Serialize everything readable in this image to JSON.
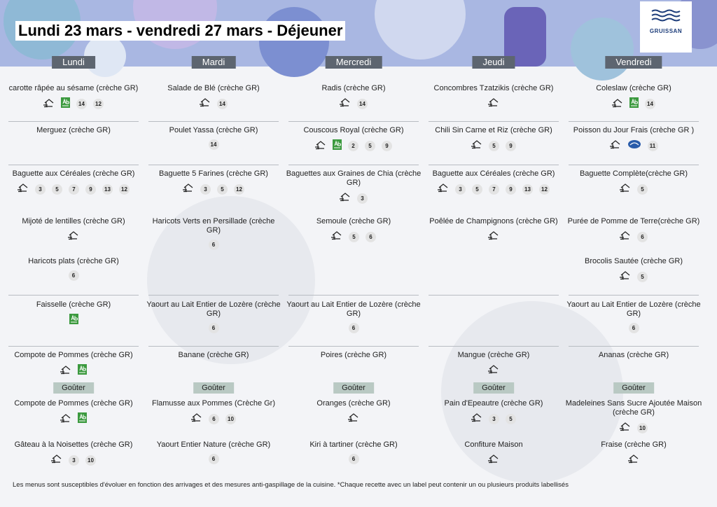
{
  "title": "Lundi 23 mars - vendredi 27 mars  - Déjeuner",
  "logo": "GRUISSAN",
  "days": [
    {
      "name": "Lundi",
      "lunch": [
        {
          "name": "carotte râpée au sésame (crèche GR)",
          "house": true,
          "bio": true,
          "allergens": [
            14,
            12
          ]
        },
        {
          "name": "Merguez (crèche GR)"
        },
        {
          "name": "Baguette aux Céréales (crèche GR)",
          "house": true,
          "allergens": [
            3,
            5,
            7,
            9,
            13,
            12
          ]
        },
        {
          "name": "Mijoté de lentilles   (crèche GR)",
          "house": true
        },
        {
          "name": "Haricots plats (crèche GR)",
          "allergens": [
            6
          ]
        },
        {
          "name": "Faisselle (crèche GR)",
          "bio": true
        },
        {
          "name": "Compote de Pommes (crèche GR)",
          "house": true,
          "bio": true
        }
      ],
      "snack_label": "Goûter",
      "snack": [
        {
          "name": "Compote de Pommes (crèche GR)",
          "house": true,
          "bio": true
        },
        {
          "name": "Gâteau à la Noisettes (crèche GR)",
          "house": true,
          "allergens": [
            3,
            10
          ]
        }
      ]
    },
    {
      "name": "Mardi",
      "lunch": [
        {
          "name": "Salade de Blé (crèche GR)",
          "house": true,
          "allergens": [
            14
          ]
        },
        {
          "name": "Poulet Yassa (crèche GR)",
          "allergens": [
            14
          ]
        },
        {
          "name": "Baguette 5 Farines (crèche GR)",
          "house": true,
          "allergens": [
            3,
            5,
            12
          ]
        },
        {
          "name": "Haricots Verts en Persillade (crèche GR)",
          "allergens": [
            6
          ]
        },
        null,
        {
          "name": "Yaourt au Lait Entier de Lozère (crèche GR)",
          "allergens": [
            6
          ]
        },
        {
          "name": "Banane (crèche GR)"
        }
      ],
      "snack_label": "Goûter",
      "snack": [
        {
          "name": "Flamusse aux Pommes (Crèche Gr)",
          "house": true,
          "allergens": [
            6,
            10
          ]
        },
        {
          "name": "Yaourt Entier Nature (crèche GR)",
          "allergens": [
            6
          ]
        }
      ]
    },
    {
      "name": "Mercredi",
      "lunch": [
        {
          "name": "Radis (crèche GR)",
          "house": true,
          "allergens": [
            14
          ]
        },
        {
          "name": "Couscous Royal (crèche GR)",
          "house": true,
          "bio": true,
          "allergens": [
            2,
            5,
            9
          ]
        },
        {
          "name": "Baguettes aux Graines de Chia (crèche GR)",
          "house": true,
          "allergens": [
            3
          ]
        },
        {
          "name": "Semoule (crèche GR)",
          "house": true,
          "allergens": [
            5,
            6
          ]
        },
        null,
        {
          "name": "Yaourt au Lait Entier de Lozère (crèche GR)",
          "allergens": [
            6
          ]
        },
        {
          "name": "Poires (crèche GR)"
        }
      ],
      "snack_label": "Goûter",
      "snack": [
        {
          "name": "Oranges (crèche GR)",
          "house": true
        },
        {
          "name": "Kiri à tartiner (crèche GR)",
          "allergens": [
            6
          ]
        }
      ]
    },
    {
      "name": "Jeudi",
      "lunch": [
        {
          "name": "Concombres Tzatzikis (crèche GR)",
          "house": true
        },
        {
          "name": "Chili Sin Carne et Riz (crèche GR)",
          "house": true,
          "allergens": [
            5,
            9
          ]
        },
        {
          "name": "Baguette aux Céréales (crèche GR)",
          "house": true,
          "allergens": [
            3,
            5,
            7,
            9,
            13,
            12
          ]
        },
        {
          "name": "Poêlée de Champignons (crèche GR)",
          "house": true
        },
        null,
        null,
        {
          "name": "Mangue  (crèche GR)",
          "house": true
        }
      ],
      "snack_label": "Goûter",
      "snack": [
        {
          "name": "Pain d'Epeautre (crèche GR)",
          "house": true,
          "allergens": [
            3,
            5
          ]
        },
        {
          "name": "Confiture Maison",
          "house": true
        }
      ]
    },
    {
      "name": "Vendredi",
      "lunch": [
        {
          "name": "Coleslaw (crèche GR)",
          "house": true,
          "bio": true,
          "allergens": [
            14
          ]
        },
        {
          "name": "Poisson du Jour Frais (crèche GR )",
          "house": true,
          "msc": true,
          "allergens": [
            11
          ]
        },
        {
          "name": "Baguette Complète(crèche GR)",
          "house": true,
          "allergens": [
            5
          ]
        },
        {
          "name": "Purée de Pomme de Terre(crèche GR)",
          "house": true,
          "allergens": [
            6
          ]
        },
        {
          "name": "Brocolis Sautée (crèche GR)",
          "house": true,
          "allergens": [
            5
          ]
        },
        {
          "name": "Yaourt au Lait Entier de Lozère (crèche GR)",
          "allergens": [
            6
          ]
        },
        {
          "name": "Ananas (crèche GR)"
        }
      ],
      "snack_label": "Goûter",
      "snack": [
        {
          "name": "Madeleines Sans Sucre Ajoutée Maison (crèche GR)",
          "house": true,
          "allergens": [
            10
          ]
        },
        {
          "name": "Fraise (crèche GR)",
          "house": true
        }
      ]
    }
  ],
  "footer": "Les menus sont susceptibles d'évoluer en fonction des arrivages et des mesures anti-gaspillage de la cuisine. *Chaque recette avec un label peut contenir un ou plusieurs produits labellisés"
}
